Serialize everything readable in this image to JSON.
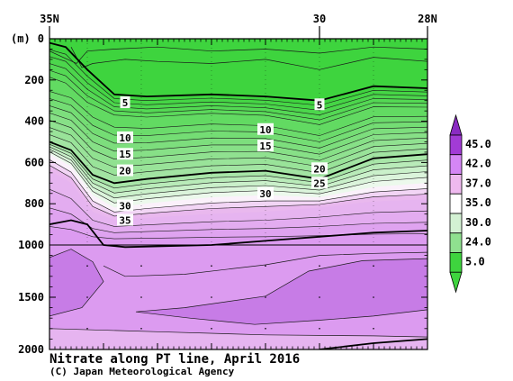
{
  "chart_data": {
    "type": "heatmap",
    "title": "Nitrate along PT line, April 2016",
    "credit": "(C) Japan Meteorological Agency",
    "y_unit_label": "(m)",
    "x_ticks": [
      {
        "value": 35,
        "label": "35N"
      },
      {
        "value": 30,
        "label": "30"
      },
      {
        "value": 28,
        "label": "28N"
      }
    ],
    "xlim": [
      35,
      28
    ],
    "ylim": [
      0,
      2000
    ],
    "y_ticks_upper": [
      0,
      200,
      400,
      600,
      800,
      1000
    ],
    "y_ticks_lower": [
      1500,
      2000
    ],
    "y_scale": "piecewise linear: 0-1000 m upper panel, 1000-2000 m compressed lower panel",
    "colorbar": {
      "labels": [
        "5.0",
        "24.0",
        "30.0",
        "35.0",
        "37.0",
        "42.0",
        "45.0"
      ],
      "colors": [
        "#3ed43e",
        "#8fe08f",
        "#d3f1d3",
        "#ffffff",
        "#efb9ef",
        "#d586f5",
        "#a23bd6"
      ]
    },
    "isoline_labels": [
      {
        "value": "5",
        "lat": 33.6,
        "depth": 310
      },
      {
        "value": "5",
        "lat": 30.0,
        "depth": 320
      },
      {
        "value": "10",
        "lat": 33.6,
        "depth": 480
      },
      {
        "value": "10",
        "lat": 31.0,
        "depth": 440
      },
      {
        "value": "15",
        "lat": 33.6,
        "depth": 560
      },
      {
        "value": "15",
        "lat": 31.0,
        "depth": 520
      },
      {
        "value": "20",
        "lat": 33.6,
        "depth": 640
      },
      {
        "value": "20",
        "lat": 30.0,
        "depth": 630
      },
      {
        "value": "25",
        "lat": 30.0,
        "depth": 700
      },
      {
        "value": "30",
        "lat": 33.6,
        "depth": 810
      },
      {
        "value": "30",
        "lat": 31.0,
        "depth": 750
      },
      {
        "value": "35",
        "lat": 33.6,
        "depth": 880
      }
    ],
    "sections": [
      {
        "upper": [
          {
            "lat": 35.0,
            "depth": 20
          },
          {
            "lat": 34.7,
            "depth": 40
          },
          {
            "lat": 34.3,
            "depth": 150
          },
          {
            "lat": 33.8,
            "depth": 270
          },
          {
            "lat": 33.2,
            "depth": 280
          },
          {
            "lat": 32.0,
            "depth": 270
          },
          {
            "lat": 31.0,
            "depth": 280
          },
          {
            "lat": 30.0,
            "depth": 300
          },
          {
            "lat": 29.0,
            "depth": 230
          },
          {
            "lat": 28.0,
            "depth": 240
          }
        ],
        "lower": [
          {
            "lat": 35.0,
            "depth": 220
          },
          {
            "lat": 34.6,
            "depth": 250
          },
          {
            "lat": 34.2,
            "depth": 340
          },
          {
            "lat": 33.8,
            "depth": 390
          },
          {
            "lat": 33.2,
            "depth": 400
          },
          {
            "lat": 32.0,
            "depth": 380
          },
          {
            "lat": 31.0,
            "depth": 390
          },
          {
            "lat": 30.0,
            "depth": 440
          },
          {
            "lat": 29.0,
            "depth": 350
          },
          {
            "lat": 28.0,
            "depth": 350
          }
        ],
        "from": "#3ed43e",
        "to": "#62da62",
        "n": 6
      },
      {
        "upper": [
          {
            "lat": 35.0,
            "depth": 220
          },
          {
            "lat": 34.6,
            "depth": 250
          },
          {
            "lat": 34.2,
            "depth": 340
          },
          {
            "lat": 33.8,
            "depth": 390
          },
          {
            "lat": 33.2,
            "depth": 400
          },
          {
            "lat": 32.0,
            "depth": 380
          },
          {
            "lat": 31.0,
            "depth": 390
          },
          {
            "lat": 30.0,
            "depth": 440
          },
          {
            "lat": 29.0,
            "depth": 350
          },
          {
            "lat": 28.0,
            "depth": 350
          }
        ],
        "lower": [
          {
            "lat": 35.0,
            "depth": 500
          },
          {
            "lat": 34.6,
            "depth": 540
          },
          {
            "lat": 34.2,
            "depth": 660
          },
          {
            "lat": 33.8,
            "depth": 700
          },
          {
            "lat": 33.2,
            "depth": 680
          },
          {
            "lat": 32.0,
            "depth": 650
          },
          {
            "lat": 31.0,
            "depth": 640
          },
          {
            "lat": 30.0,
            "depth": 680
          },
          {
            "lat": 29.0,
            "depth": 580
          },
          {
            "lat": 28.0,
            "depth": 560
          }
        ],
        "from": "#62da62",
        "to": "#a2e4a2",
        "n": 8
      },
      {
        "upper": [
          {
            "lat": 35.0,
            "depth": 500
          },
          {
            "lat": 34.6,
            "depth": 540
          },
          {
            "lat": 34.2,
            "depth": 660
          },
          {
            "lat": 33.8,
            "depth": 700
          },
          {
            "lat": 33.2,
            "depth": 680
          },
          {
            "lat": 32.0,
            "depth": 650
          },
          {
            "lat": 31.0,
            "depth": 640
          },
          {
            "lat": 30.0,
            "depth": 680
          },
          {
            "lat": 29.0,
            "depth": 580
          },
          {
            "lat": 28.0,
            "depth": 560
          }
        ],
        "lower": [
          {
            "lat": 35.0,
            "depth": 560
          },
          {
            "lat": 34.6,
            "depth": 620
          },
          {
            "lat": 34.2,
            "depth": 760
          },
          {
            "lat": 33.8,
            "depth": 820
          },
          {
            "lat": 33.2,
            "depth": 800
          },
          {
            "lat": 32.0,
            "depth": 770
          },
          {
            "lat": 31.0,
            "depth": 760
          },
          {
            "lat": 30.0,
            "depth": 770
          },
          {
            "lat": 29.0,
            "depth": 720
          },
          {
            "lat": 28.0,
            "depth": 700
          }
        ],
        "from": "#a8e6a8",
        "to": "#ecf9ec",
        "n": 5
      },
      {
        "upper": [
          {
            "lat": 35.0,
            "depth": 560
          },
          {
            "lat": 34.6,
            "depth": 620
          },
          {
            "lat": 34.2,
            "depth": 760
          },
          {
            "lat": 33.8,
            "depth": 820
          },
          {
            "lat": 33.2,
            "depth": 800
          },
          {
            "lat": 32.0,
            "depth": 770
          },
          {
            "lat": 31.0,
            "depth": 760
          },
          {
            "lat": 30.0,
            "depth": 770
          },
          {
            "lat": 29.0,
            "depth": 720
          },
          {
            "lat": 28.0,
            "depth": 700
          }
        ],
        "lower": [
          {
            "lat": 35.0,
            "depth": 640
          },
          {
            "lat": 34.6,
            "depth": 700
          },
          {
            "lat": 34.2,
            "depth": 840
          },
          {
            "lat": 33.8,
            "depth": 880
          },
          {
            "lat": 33.2,
            "depth": 870
          },
          {
            "lat": 32.0,
            "depth": 850
          },
          {
            "lat": 31.0,
            "depth": 840
          },
          {
            "lat": 30.0,
            "depth": 820
          },
          {
            "lat": 29.0,
            "depth": 790
          },
          {
            "lat": 28.0,
            "depth": 780
          }
        ],
        "from": "#fbf1fb",
        "to": "#e9b8ee",
        "n": 3
      },
      {
        "upper": [
          {
            "lat": 35.0,
            "depth": 640
          },
          {
            "lat": 34.6,
            "depth": 700
          },
          {
            "lat": 34.2,
            "depth": 840
          },
          {
            "lat": 33.8,
            "depth": 880
          },
          {
            "lat": 33.2,
            "depth": 870
          },
          {
            "lat": 32.0,
            "depth": 850
          },
          {
            "lat": 31.0,
            "depth": 840
          },
          {
            "lat": 30.0,
            "depth": 820
          },
          {
            "lat": 29.0,
            "depth": 790
          },
          {
            "lat": 28.0,
            "depth": 780
          }
        ],
        "lower": [
          {
            "lat": 35.0,
            "depth": 1000
          },
          {
            "lat": 34.6,
            "depth": 1000
          },
          {
            "lat": 34.2,
            "depth": 1000
          },
          {
            "lat": 33.8,
            "depth": 1000
          },
          {
            "lat": 33.2,
            "depth": 1000
          },
          {
            "lat": 32.0,
            "depth": 1000
          },
          {
            "lat": 31.0,
            "depth": 1000
          },
          {
            "lat": 30.0,
            "depth": 1000
          },
          {
            "lat": 29.0,
            "depth": 1000
          },
          {
            "lat": 28.0,
            "depth": 1000
          }
        ],
        "from": "#e6b4f0",
        "to": "#dc9bf0",
        "n": 4
      }
    ],
    "deep_background": "#dc9bf0",
    "patches": [
      {
        "color": "#c77ce6",
        "outline": [
          {
            "lat": 35.0,
            "depth": 1120
          },
          {
            "lat": 34.6,
            "depth": 1040
          },
          {
            "lat": 34.2,
            "depth": 1160
          },
          {
            "lat": 34.0,
            "depth": 1350
          },
          {
            "lat": 34.4,
            "depth": 1600
          },
          {
            "lat": 35.0,
            "depth": 1680
          }
        ]
      },
      {
        "color": "#c77ce6",
        "outline": [
          {
            "lat": 33.4,
            "depth": 1640
          },
          {
            "lat": 32.5,
            "depth": 1600
          },
          {
            "lat": 31.0,
            "depth": 1490
          },
          {
            "lat": 30.2,
            "depth": 1250
          },
          {
            "lat": 29.2,
            "depth": 1150
          },
          {
            "lat": 28.0,
            "depth": 1130
          },
          {
            "lat": 28.0,
            "depth": 1620
          },
          {
            "lat": 29.0,
            "depth": 1680
          },
          {
            "lat": 30.0,
            "depth": 1720
          },
          {
            "lat": 31.2,
            "depth": 1760
          },
          {
            "lat": 32.4,
            "depth": 1700
          }
        ]
      },
      {
        "color": "#e6b4f0",
        "outline": [
          {
            "lat": 35.0,
            "depth": 1800
          },
          {
            "lat": 33.0,
            "depth": 1830
          },
          {
            "lat": 31.0,
            "depth": 1860
          },
          {
            "lat": 29.0,
            "depth": 1870
          },
          {
            "lat": 28.0,
            "depth": 1880
          },
          {
            "lat": 28.0,
            "depth": 2000
          },
          {
            "lat": 35.0,
            "depth": 2000
          }
        ]
      }
    ],
    "thick_isolines": [
      [
        {
          "lat": 35.0,
          "depth": 20
        },
        {
          "lat": 34.7,
          "depth": 40
        },
        {
          "lat": 34.3,
          "depth": 150
        },
        {
          "lat": 33.8,
          "depth": 270
        },
        {
          "lat": 33.2,
          "depth": 280
        },
        {
          "lat": 32.0,
          "depth": 270
        },
        {
          "lat": 31.0,
          "depth": 280
        },
        {
          "lat": 30.0,
          "depth": 300
        },
        {
          "lat": 29.0,
          "depth": 230
        },
        {
          "lat": 28.0,
          "depth": 240
        }
      ],
      [
        {
          "lat": 35.0,
          "depth": 500
        },
        {
          "lat": 34.6,
          "depth": 540
        },
        {
          "lat": 34.2,
          "depth": 660
        },
        {
          "lat": 33.8,
          "depth": 700
        },
        {
          "lat": 33.2,
          "depth": 680
        },
        {
          "lat": 32.0,
          "depth": 650
        },
        {
          "lat": 31.0,
          "depth": 640
        },
        {
          "lat": 30.0,
          "depth": 680
        },
        {
          "lat": 29.0,
          "depth": 580
        },
        {
          "lat": 28.0,
          "depth": 560
        }
      ],
      [
        {
          "lat": 35.0,
          "depth": 900
        },
        {
          "lat": 34.6,
          "depth": 880
        },
        {
          "lat": 34.3,
          "depth": 900
        },
        {
          "lat": 34.0,
          "depth": 1000
        },
        {
          "lat": 33.6,
          "depth": 1020
        },
        {
          "lat": 32.0,
          "depth": 1000
        },
        {
          "lat": 31.0,
          "depth": 980
        },
        {
          "lat": 30.0,
          "depth": 960
        },
        {
          "lat": 29.0,
          "depth": 940
        },
        {
          "lat": 28.0,
          "depth": 930
        }
      ],
      [
        {
          "lat": 30.0,
          "depth": 2000
        },
        {
          "lat": 29.0,
          "depth": 1940
        },
        {
          "lat": 28.0,
          "depth": 1900
        }
      ]
    ],
    "thin_isolines": [
      [
        {
          "lat": 35.0,
          "depth": 60
        },
        {
          "lat": 34.5,
          "depth": 120
        },
        {
          "lat": 34.3,
          "depth": 60
        },
        {
          "lat": 33.8,
          "depth": 50
        },
        {
          "lat": 33.0,
          "depth": 40
        },
        {
          "lat": 32.0,
          "depth": 60
        },
        {
          "lat": 31.0,
          "depth": 50
        },
        {
          "lat": 30.0,
          "depth": 70
        },
        {
          "lat": 29.0,
          "depth": 40
        },
        {
          "lat": 28.0,
          "depth": 50
        }
      ],
      [
        {
          "lat": 34.6,
          "depth": 40
        },
        {
          "lat": 34.4,
          "depth": 140
        },
        {
          "lat": 34.2,
          "depth": 120
        },
        {
          "lat": 33.6,
          "depth": 100
        },
        {
          "lat": 33.0,
          "depth": 110
        },
        {
          "lat": 32.0,
          "depth": 120
        },
        {
          "lat": 31.0,
          "depth": 100
        },
        {
          "lat": 30.0,
          "depth": 150
        },
        {
          "lat": 29.0,
          "depth": 90
        },
        {
          "lat": 28.0,
          "depth": 110
        }
      ],
      [
        {
          "lat": 34.0,
          "depth": 1200
        },
        {
          "lat": 33.6,
          "depth": 1300
        },
        {
          "lat": 32.5,
          "depth": 1280
        },
        {
          "lat": 31.0,
          "depth": 1190
        },
        {
          "lat": 30.0,
          "depth": 1100
        },
        {
          "lat": 29.0,
          "depth": 1080
        },
        {
          "lat": 28.0,
          "depth": 1070
        }
      ]
    ]
  }
}
